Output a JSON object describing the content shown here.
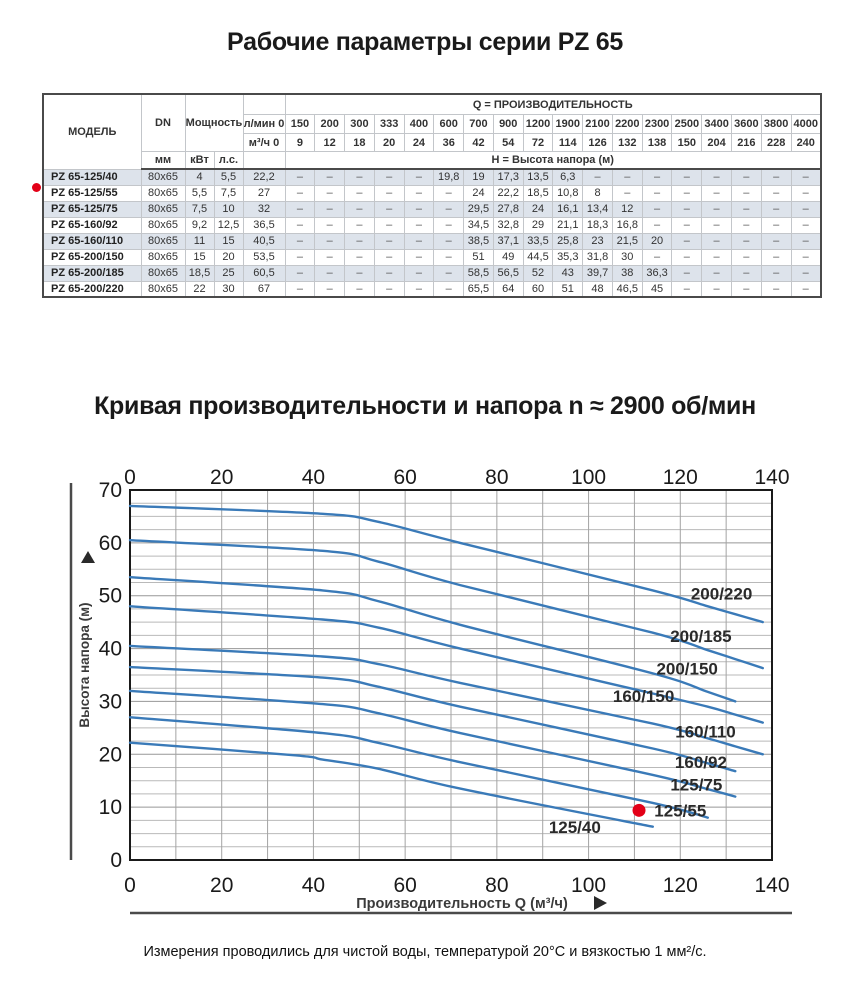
{
  "page": {
    "title": "Рабочие параметры серии PZ 65",
    "chart_title": "Кривая производительности и напора n ≈ 2900 об/мин",
    "footnote": "Измерения проводились для чистой воды, температурой 20°C и вязкостью 1 мм²/с."
  },
  "table": {
    "header": {
      "model": "МОДЕЛЬ",
      "dn": "DN",
      "dn_unit": "мм",
      "power": "Мощность",
      "power_units": [
        "кВт",
        "л.с."
      ],
      "q_group": "Q = ПРОИЗВОДИТЕЛЬНОСТЬ",
      "h_group": "H = Высота напора (м)",
      "lmin_label": "л/мин 0",
      "m3h_label": "м³/ч 0",
      "lmin_values": [
        "150",
        "200",
        "300",
        "333",
        "400",
        "600",
        "700",
        "900",
        "1200",
        "1900",
        "2100",
        "2200",
        "2300",
        "2500",
        "3400",
        "3600",
        "3800",
        "4000"
      ],
      "m3h_values": [
        "9",
        "12",
        "18",
        "20",
        "24",
        "36",
        "42",
        "54",
        "72",
        "114",
        "126",
        "132",
        "138",
        "150",
        "204",
        "216",
        "228",
        "240"
      ]
    },
    "rows": [
      {
        "model": "PZ 65-125/40",
        "dn": "80x65",
        "kw": "4",
        "hp": "5,5",
        "q0": "22,2",
        "marked": false,
        "h": [
          "–",
          "–",
          "–",
          "–",
          "–",
          "19,8",
          "19",
          "17,3",
          "13,5",
          "6,3",
          "–",
          "–",
          "–",
          "–",
          "–",
          "–",
          "–",
          "–"
        ]
      },
      {
        "model": "PZ 65-125/55",
        "dn": "80x65",
        "kw": "5,5",
        "hp": "7,5",
        "q0": "27",
        "marked": true,
        "h": [
          "–",
          "–",
          "–",
          "–",
          "–",
          "–",
          "24",
          "22,2",
          "18,5",
          "10,8",
          "8",
          "–",
          "–",
          "–",
          "–",
          "–",
          "–",
          "–"
        ]
      },
      {
        "model": "PZ 65-125/75",
        "dn": "80x65",
        "kw": "7,5",
        "hp": "10",
        "q0": "32",
        "marked": false,
        "h": [
          "–",
          "–",
          "–",
          "–",
          "–",
          "–",
          "29,5",
          "27,8",
          "24",
          "16,1",
          "13,4",
          "12",
          "–",
          "–",
          "–",
          "–",
          "–",
          "–"
        ]
      },
      {
        "model": "PZ 65-160/92",
        "dn": "80x65",
        "kw": "9,2",
        "hp": "12,5",
        "q0": "36,5",
        "marked": false,
        "h": [
          "–",
          "–",
          "–",
          "–",
          "–",
          "–",
          "34,5",
          "32,8",
          "29",
          "21,1",
          "18,3",
          "16,8",
          "–",
          "–",
          "–",
          "–",
          "–",
          "–"
        ]
      },
      {
        "model": "PZ 65-160/110",
        "dn": "80x65",
        "kw": "11",
        "hp": "15",
        "q0": "40,5",
        "marked": false,
        "h": [
          "–",
          "–",
          "–",
          "–",
          "–",
          "–",
          "38,5",
          "37,1",
          "33,5",
          "25,8",
          "23",
          "21,5",
          "20",
          "–",
          "–",
          "–",
          "–",
          "–"
        ]
      },
      {
        "model": "PZ 65-200/150",
        "dn": "80x65",
        "kw": "15",
        "hp": "20",
        "q0": "53,5",
        "marked": false,
        "h": [
          "–",
          "–",
          "–",
          "–",
          "–",
          "–",
          "51",
          "49",
          "44,5",
          "35,3",
          "31,8",
          "30",
          "–",
          "–",
          "–",
          "–",
          "–",
          "–"
        ]
      },
      {
        "model": "PZ 65-200/185",
        "dn": "80x65",
        "kw": "18,5",
        "hp": "25",
        "q0": "60,5",
        "marked": false,
        "h": [
          "–",
          "–",
          "–",
          "–",
          "–",
          "–",
          "58,5",
          "56,5",
          "52",
          "43",
          "39,7",
          "38",
          "36,3",
          "–",
          "–",
          "–",
          "–",
          "–"
        ]
      },
      {
        "model": "PZ 65-200/220",
        "dn": "80x65",
        "kw": "22",
        "hp": "30",
        "q0": "67",
        "marked": false,
        "h": [
          "–",
          "–",
          "–",
          "–",
          "–",
          "–",
          "65,5",
          "64",
          "60",
          "51",
          "48",
          "46,5",
          "45",
          "–",
          "–",
          "–",
          "–",
          "–"
        ]
      }
    ]
  },
  "chart_data": {
    "type": "line",
    "title": "Кривая производительности и напора n ≈ 2900 об/мин",
    "xlabel": "Производительность Q (м³/ч)",
    "ylabel": "Высота напора (м)",
    "xlim": [
      0,
      140
    ],
    "ylim": [
      0,
      70
    ],
    "x_ticks": [
      0,
      20,
      40,
      60,
      80,
      100,
      120,
      140
    ],
    "y_ticks": [
      0,
      10,
      20,
      30,
      40,
      50,
      60,
      70
    ],
    "grid": "on",
    "line_color": "#3a7ab8",
    "marker_color": "#e30017",
    "series": [
      {
        "name": "125/40",
        "label_x": 97,
        "label_y": 6.2,
        "points": [
          [
            0,
            22.2
          ],
          [
            36,
            19.8
          ],
          [
            42,
            19
          ],
          [
            54,
            17.3
          ],
          [
            72,
            13.5
          ],
          [
            114,
            6.3
          ]
        ]
      },
      {
        "name": "125/55",
        "label_x": 120,
        "label_y": 9.4,
        "points": [
          [
            0,
            27
          ],
          [
            42,
            24
          ],
          [
            54,
            22.2
          ],
          [
            72,
            18.5
          ],
          [
            114,
            10.8
          ],
          [
            126,
            8
          ]
        ]
      },
      {
        "name": "125/75",
        "label_x": 123.5,
        "label_y": 14.3,
        "points": [
          [
            0,
            32
          ],
          [
            42,
            29.5
          ],
          [
            54,
            27.8
          ],
          [
            72,
            24
          ],
          [
            114,
            16.1
          ],
          [
            126,
            13.4
          ],
          [
            132,
            12
          ]
        ]
      },
      {
        "name": "160/92",
        "label_x": 124.5,
        "label_y": 18.5,
        "points": [
          [
            0,
            36.5
          ],
          [
            42,
            34.5
          ],
          [
            54,
            32.8
          ],
          [
            72,
            29
          ],
          [
            114,
            21.1
          ],
          [
            126,
            18.3
          ],
          [
            132,
            16.8
          ]
        ]
      },
      {
        "name": "160/110",
        "label_x": 125.5,
        "label_y": 24.3,
        "points": [
          [
            0,
            40.5
          ],
          [
            42,
            38.5
          ],
          [
            54,
            37.1
          ],
          [
            72,
            33.5
          ],
          [
            114,
            25.8
          ],
          [
            126,
            23
          ],
          [
            132,
            21.5
          ],
          [
            138,
            20
          ]
        ]
      },
      {
        "name": "160/150",
        "label_x": 112,
        "label_y": 31,
        "points": [
          [
            0,
            48
          ],
          [
            42,
            45.5
          ],
          [
            54,
            44
          ],
          [
            72,
            40
          ],
          [
            114,
            31.5
          ],
          [
            126,
            29
          ],
          [
            132,
            27.5
          ],
          [
            138,
            26
          ]
        ]
      },
      {
        "name": "200/150",
        "label_x": 121.5,
        "label_y": 36.2,
        "points": [
          [
            0,
            53.5
          ],
          [
            42,
            51
          ],
          [
            54,
            49
          ],
          [
            72,
            44.5
          ],
          [
            114,
            35.3
          ],
          [
            126,
            31.8
          ],
          [
            132,
            30
          ]
        ]
      },
      {
        "name": "200/185",
        "label_x": 124.5,
        "label_y": 42.4,
        "points": [
          [
            0,
            60.5
          ],
          [
            42,
            58.5
          ],
          [
            54,
            56.5
          ],
          [
            72,
            52
          ],
          [
            114,
            43
          ],
          [
            126,
            39.7
          ],
          [
            132,
            38
          ],
          [
            138,
            36.3
          ]
        ]
      },
      {
        "name": "200/220",
        "label_x": 129,
        "label_y": 50.4,
        "points": [
          [
            0,
            67
          ],
          [
            42,
            65.5
          ],
          [
            54,
            64
          ],
          [
            72,
            60
          ],
          [
            114,
            51
          ],
          [
            126,
            48
          ],
          [
            132,
            46.5
          ],
          [
            138,
            45
          ]
        ]
      }
    ],
    "duty_point": {
      "series": "125/55",
      "x": 111,
      "y": 9.4
    }
  },
  "colors": {
    "curve_blue": "#3a7ab8",
    "marker_red": "#e30017",
    "row_shade": "#dde3eb",
    "grid_gray": "#a6a6a6"
  }
}
